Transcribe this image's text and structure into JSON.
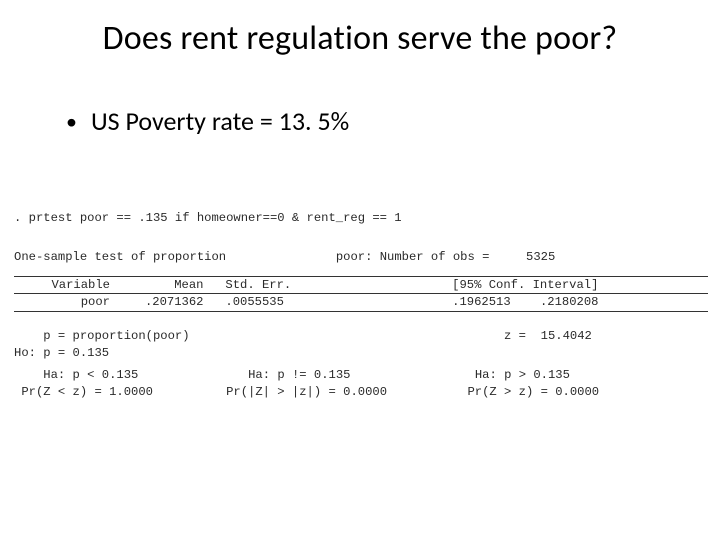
{
  "colors": {
    "background": "#ffffff",
    "text": "#000000",
    "mono_text": "#2a2a2a",
    "rule": "#333333"
  },
  "typography": {
    "title_fontsize": 34,
    "bullet_fontsize": 26,
    "mono_fontsize": 12.2,
    "title_font": "Calibri",
    "mono_font": "Courier New"
  },
  "title": "Does rent regulation serve the poor?",
  "bullet": {
    "marker": "•",
    "text": "US Poverty rate = 13. 5%"
  },
  "stata": {
    "command_line": ". prtest poor == .135 if homeowner==0 & rent_reg == 1",
    "header_left": "One-sample test of proportion",
    "header_right_label": "poor: Number of obs =",
    "header_right_value": "5325",
    "col_variable": "Variable",
    "col_mean": "Mean",
    "col_se": "Std. Err.",
    "col_ci": "[95% Conf. Interval]",
    "row_var": "poor",
    "row_mean": ".2071362",
    "row_se": ".0055535",
    "row_ci_lo": ".1962513",
    "row_ci_hi": ".2180208",
    "p_def": "    p = proportion(poor)",
    "z_label": "z =",
    "z_value": "15.4042",
    "ho": "Ho: p = 0.135",
    "ha_left_h": "    Ha: p < 0.135",
    "ha_left_p": " Pr(Z < z) = 1.0000",
    "ha_mid_h": "Ha: p != 0.135",
    "ha_mid_p": "Pr(|Z| > |z|) = 0.0000",
    "ha_right_h": "Ha: p > 0.135",
    "ha_right_p": "Pr(Z > z) = 0.0000"
  }
}
